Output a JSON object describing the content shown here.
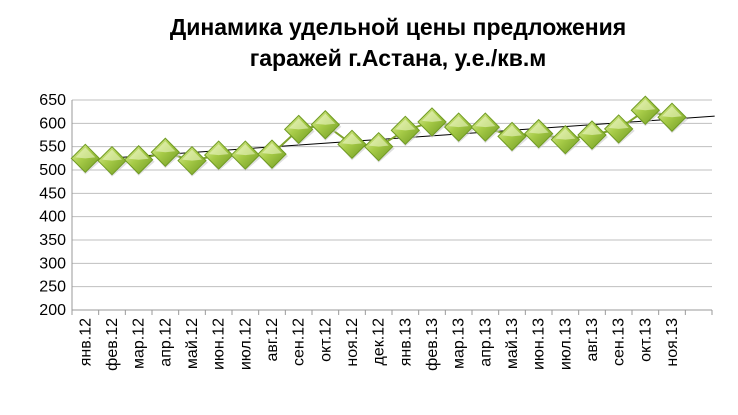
{
  "chart_data": {
    "type": "line",
    "title_lines": [
      "Динамика удельной цены предложения",
      "гаражей г.Астана, у.е./кв.м"
    ],
    "xlabel": "",
    "ylabel": "",
    "categories": [
      "янв.12",
      "фев.12",
      "мар.12",
      "апр.12",
      "май.12",
      "июн.12",
      "июл.12",
      "авг.12",
      "сен.12",
      "окт.12",
      "ноя.12",
      "дек.12",
      "янв.13",
      "фев.13",
      "мар.13",
      "апр.13",
      "май.13",
      "июн.13",
      "июл.13",
      "авг.13",
      "сен.13",
      "окт.13",
      "ноя.13"
    ],
    "series": [
      {
        "values": [
          525,
          520,
          522,
          538,
          520,
          532,
          532,
          534,
          587,
          597,
          555,
          550,
          585,
          603,
          592,
          592,
          572,
          578,
          565,
          575,
          588,
          628,
          613
        ],
        "marker": "diamond",
        "color": "#9cc23a"
      }
    ],
    "trendline": {
      "type": "linear",
      "color": "#000000"
    },
    "ylim": [
      200,
      650
    ],
    "yticks": [
      200,
      250,
      300,
      350,
      400,
      450,
      500,
      550,
      600,
      650
    ],
    "grid": true,
    "legend": "none"
  }
}
